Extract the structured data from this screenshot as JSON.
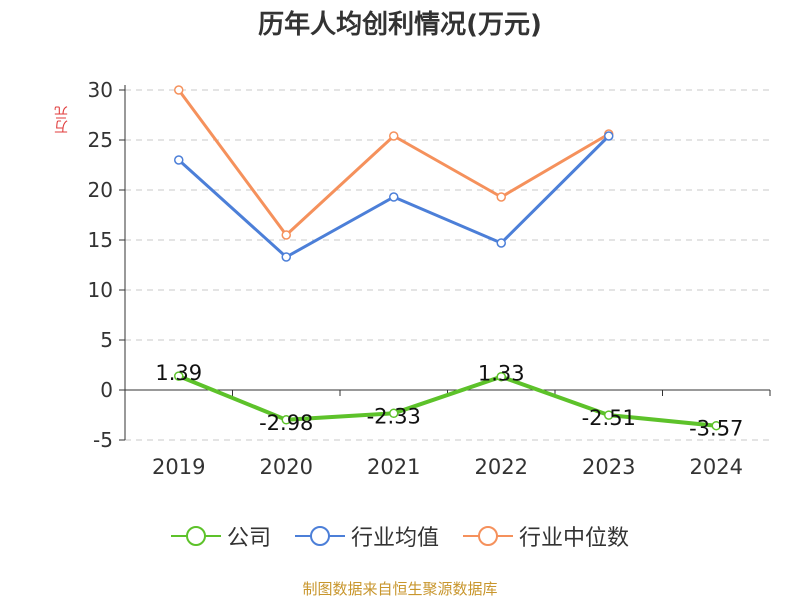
{
  "chart_data": {
    "type": "line",
    "title": "历年人均创利情况(万元)",
    "ylabel": "万元",
    "categories": [
      "2019",
      "2020",
      "2021",
      "2022",
      "2023",
      "2024"
    ],
    "ylim": [
      -5,
      30
    ],
    "yticks": [
      30,
      25,
      20,
      15,
      10,
      5,
      0,
      -5
    ],
    "grid": true,
    "legend_position": "bottom",
    "series": [
      {
        "name": "公司",
        "color": "#5dc22a",
        "values": [
          1.39,
          -2.98,
          -2.33,
          1.33,
          -2.51,
          -3.57
        ],
        "data_labels": [
          "1.39",
          "-2.98",
          "-2.33",
          "1.33",
          "-2.51",
          "-3.57"
        ]
      },
      {
        "name": "行业均值",
        "color": "#4c7fd8",
        "values": [
          23.0,
          13.3,
          19.3,
          14.7,
          25.4,
          null
        ]
      },
      {
        "name": "行业中位数",
        "color": "#f5915c",
        "values": [
          30.0,
          15.5,
          25.4,
          19.3,
          25.6,
          null
        ]
      }
    ]
  },
  "footer": {
    "source": "制图数据来自恒生聚源数据库"
  }
}
